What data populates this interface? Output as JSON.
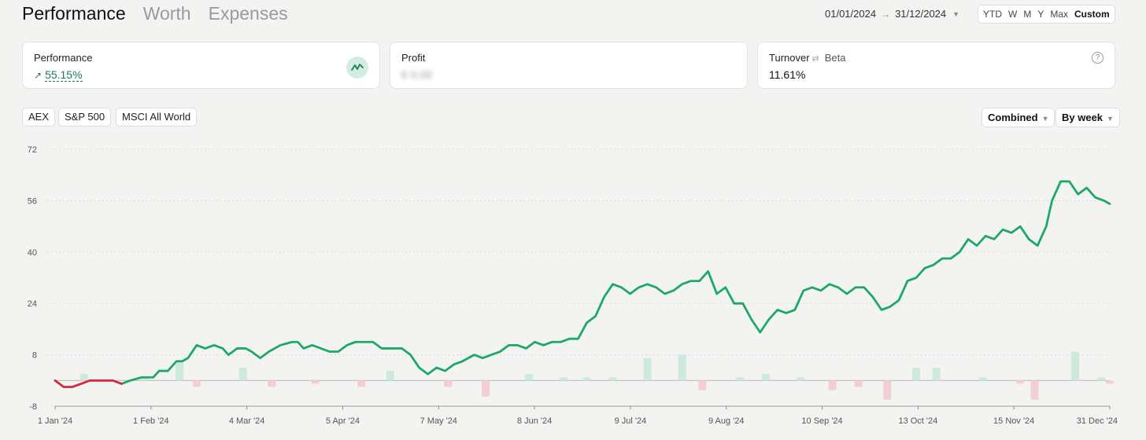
{
  "tabs": [
    "Performance",
    "Worth",
    "Expenses"
  ],
  "date_range": {
    "start": "01/01/2024",
    "end": "31/12/2024"
  },
  "periods": [
    "YTD",
    "W",
    "M",
    "Y",
    "Max",
    "Custom"
  ],
  "active_period": "Custom",
  "cards": {
    "performance": {
      "label": "Performance",
      "value": "55.15%"
    },
    "profit": {
      "label": "Profit",
      "value": "€ 0.00"
    },
    "turnover": {
      "label": "Turnover",
      "beta": "Beta",
      "value": "11.61%"
    }
  },
  "benchmarks": [
    "AEX",
    "S&P 500",
    "MSCI All World"
  ],
  "selects": {
    "mode": "Combined",
    "grouping": "By week"
  },
  "colors": {
    "positive": "#1ea868",
    "negative": "#d12a3e",
    "bar_positive": "#cbe9dc",
    "bar_negative": "#f3cfd5"
  },
  "chart_data": {
    "type": "line",
    "y_ticks": [
      72,
      56,
      40,
      24,
      8,
      -8
    ],
    "ylim": [
      -8,
      72
    ],
    "x_ticks": [
      "1 Jan '24",
      "1 Feb '24",
      "4 Mar '24",
      "5 Apr '24",
      "7 May '24",
      "8 Jun '24",
      "9 Jul '24",
      "9 Aug '24",
      "10 Sep '24",
      "13 Oct '24",
      "15 Nov '24",
      "31 Dec '24"
    ],
    "xlim": [
      0,
      365
    ],
    "line": {
      "name": "",
      "points": [
        [
          0,
          0
        ],
        [
          3,
          -2
        ],
        [
          6,
          -2
        ],
        [
          9,
          -1
        ],
        [
          12,
          0
        ],
        [
          16,
          0
        ],
        [
          20,
          0
        ],
        [
          23,
          -1
        ],
        [
          26,
          0
        ],
        [
          30,
          1
        ],
        [
          34,
          1
        ],
        [
          36,
          3
        ],
        [
          39,
          3
        ],
        [
          42,
          6
        ],
        [
          44,
          6
        ],
        [
          46,
          7
        ],
        [
          49,
          11
        ],
        [
          52,
          10
        ],
        [
          55,
          11
        ],
        [
          58,
          10
        ],
        [
          60,
          8
        ],
        [
          63,
          10
        ],
        [
          66,
          10
        ],
        [
          68,
          9
        ],
        [
          71,
          7
        ],
        [
          74,
          9
        ],
        [
          78,
          11
        ],
        [
          82,
          12
        ],
        [
          84,
          12
        ],
        [
          86,
          10
        ],
        [
          89,
          11
        ],
        [
          92,
          10
        ],
        [
          95,
          9
        ],
        [
          98,
          9
        ],
        [
          101,
          11
        ],
        [
          104,
          12
        ],
        [
          107,
          12
        ],
        [
          110,
          12
        ],
        [
          113,
          10
        ],
        [
          117,
          10
        ],
        [
          120,
          10
        ],
        [
          123,
          8
        ],
        [
          126,
          4
        ],
        [
          129,
          2
        ],
        [
          132,
          4
        ],
        [
          135,
          3
        ],
        [
          138,
          5
        ],
        [
          141,
          6
        ],
        [
          145,
          8
        ],
        [
          148,
          7
        ],
        [
          151,
          8
        ],
        [
          154,
          9
        ],
        [
          157,
          11
        ],
        [
          160,
          11
        ],
        [
          163,
          10
        ],
        [
          166,
          12
        ],
        [
          169,
          11
        ],
        [
          172,
          12
        ],
        [
          175,
          12
        ],
        [
          178,
          13
        ],
        [
          181,
          13
        ],
        [
          184,
          18
        ],
        [
          187,
          20
        ],
        [
          190,
          26
        ],
        [
          193,
          30
        ],
        [
          196,
          29
        ],
        [
          199,
          27
        ],
        [
          202,
          29
        ],
        [
          205,
          30
        ],
        [
          208,
          29
        ],
        [
          211,
          27
        ],
        [
          214,
          28
        ],
        [
          217,
          30
        ],
        [
          220,
          31
        ],
        [
          223,
          31
        ],
        [
          226,
          34
        ],
        [
          229,
          27
        ],
        [
          232,
          29
        ],
        [
          235,
          24
        ],
        [
          238,
          24
        ],
        [
          241,
          19
        ],
        [
          244,
          15
        ],
        [
          247,
          19
        ],
        [
          250,
          22
        ],
        [
          253,
          21
        ],
        [
          256,
          22
        ],
        [
          259,
          28
        ],
        [
          262,
          29
        ],
        [
          265,
          28
        ],
        [
          268,
          30
        ],
        [
          271,
          29
        ],
        [
          274,
          27
        ],
        [
          277,
          29
        ],
        [
          280,
          29
        ],
        [
          283,
          26
        ],
        [
          286,
          22
        ],
        [
          289,
          23
        ],
        [
          292,
          25
        ],
        [
          295,
          31
        ],
        [
          298,
          32
        ],
        [
          301,
          35
        ],
        [
          304,
          36
        ],
        [
          307,
          38
        ],
        [
          310,
          38
        ],
        [
          313,
          40
        ],
        [
          316,
          44
        ],
        [
          319,
          42
        ],
        [
          322,
          45
        ],
        [
          325,
          44
        ],
        [
          328,
          47
        ],
        [
          331,
          46
        ],
        [
          334,
          48
        ],
        [
          337,
          44
        ],
        [
          340,
          42
        ],
        [
          343,
          48
        ],
        [
          345,
          56
        ],
        [
          348,
          62
        ],
        [
          351,
          62
        ],
        [
          354,
          58
        ],
        [
          357,
          60
        ],
        [
          360,
          57
        ],
        [
          363,
          56
        ],
        [
          365,
          55
        ]
      ]
    },
    "bars": [
      [
        10,
        2
      ],
      [
        31,
        1
      ],
      [
        43,
        6
      ],
      [
        49,
        -2
      ],
      [
        65,
        4
      ],
      [
        75,
        -2
      ],
      [
        90,
        -1
      ],
      [
        106,
        -2
      ],
      [
        116,
        3
      ],
      [
        136,
        -2
      ],
      [
        149,
        -5
      ],
      [
        164,
        2
      ],
      [
        176,
        1
      ],
      [
        184,
        1
      ],
      [
        193,
        1
      ],
      [
        205,
        7
      ],
      [
        217,
        8
      ],
      [
        224,
        -3
      ],
      [
        237,
        1
      ],
      [
        246,
        2
      ],
      [
        258,
        1
      ],
      [
        269,
        -3
      ],
      [
        278,
        -2
      ],
      [
        288,
        -6
      ],
      [
        298,
        4
      ],
      [
        305,
        4
      ],
      [
        321,
        1
      ],
      [
        334,
        -1
      ],
      [
        339,
        -6
      ],
      [
        353,
        9
      ],
      [
        362,
        1
      ],
      [
        365,
        -1
      ]
    ]
  }
}
